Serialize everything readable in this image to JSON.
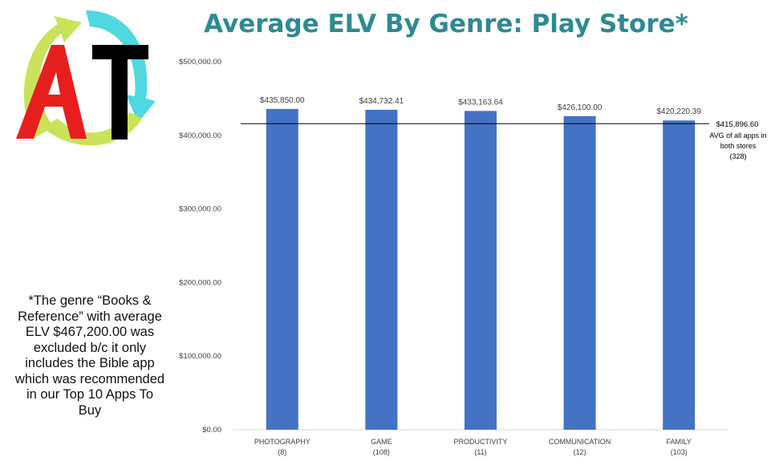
{
  "title": "Average ELV By Genre: Play Store*",
  "footnote": "*The genre “Books & Reference” with average ELV $467,200.00 was excluded b/c it only includes the Bible app which was recommended in our Top 10 Apps To Buy",
  "logo": {
    "letters": "AT",
    "colors": {
      "arrow_green": "#c8e35a",
      "arrow_cyan": "#4fd8e0",
      "letter_a": "#e81e1e",
      "letter_t": "#000000"
    }
  },
  "colors": {
    "title": "#2e8a92",
    "bar": "#4472c4",
    "text": "#404040",
    "axis": "#d9d9d9"
  },
  "chart_data": {
    "type": "bar",
    "title": "Average ELV By Genre: Play Store*",
    "categories": [
      "PHOTOGRAPHY",
      "GAME",
      "PRODUCTIVITY",
      "COMMUNICATION",
      "FAMILY"
    ],
    "category_counts": [
      "(8)",
      "(108)",
      "(11)",
      "(12)",
      "(103)"
    ],
    "values": [
      435850.0,
      434732.41,
      433163.64,
      426100.0,
      420220.39
    ],
    "value_labels": [
      "$435,850.00",
      "$434,732.41",
      "$433,163.64",
      "$426,100.00",
      "$420,220.39"
    ],
    "ylim": [
      0,
      500000
    ],
    "yticks": [
      0,
      100000,
      200000,
      300000,
      400000,
      500000
    ],
    "ytick_labels": [
      "$0.00",
      "$100,000.00",
      "$200,000.00",
      "$300,000.00",
      "$400,000.00",
      "$500,000.00"
    ],
    "gridlines": false,
    "reference_line": {
      "value": 415896.6,
      "label": "$415,896.60",
      "note_lines": [
        "AVG of all apps in",
        "both stores",
        "(328)"
      ]
    }
  }
}
